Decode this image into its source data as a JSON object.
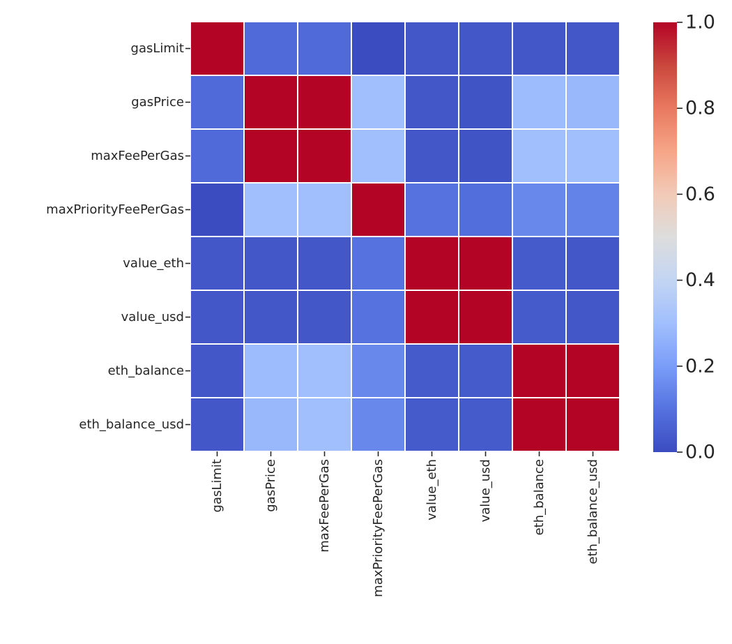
{
  "chart_data": {
    "type": "heatmap",
    "title": "",
    "xlabel": "",
    "ylabel": "",
    "row_labels": [
      "gasLimit",
      "gasPrice",
      "maxFeePerGas",
      "maxPriorityFeePerGas",
      "value_eth",
      "value_usd",
      "eth_balance",
      "eth_balance_usd"
    ],
    "col_labels": [
      "gasLimit",
      "gasPrice",
      "maxFeePerGas",
      "maxPriorityFeePerGas",
      "value_eth",
      "value_usd",
      "eth_balance",
      "eth_balance_usd"
    ],
    "values": [
      [
        1.0,
        0.08,
        0.08,
        0.0,
        0.03,
        0.03,
        0.03,
        0.03
      ],
      [
        0.08,
        1.0,
        1.0,
        0.3,
        0.03,
        0.02,
        0.29,
        0.28
      ],
      [
        0.08,
        1.0,
        1.0,
        0.3,
        0.03,
        0.02,
        0.3,
        0.3
      ],
      [
        0.0,
        0.3,
        0.3,
        1.0,
        0.1,
        0.09,
        0.15,
        0.14
      ],
      [
        0.03,
        0.03,
        0.03,
        0.1,
        1.0,
        1.0,
        0.04,
        0.03
      ],
      [
        0.03,
        0.03,
        0.03,
        0.1,
        1.0,
        1.0,
        0.04,
        0.03
      ],
      [
        0.03,
        0.29,
        0.3,
        0.15,
        0.04,
        0.04,
        1.0,
        1.0
      ],
      [
        0.03,
        0.28,
        0.3,
        0.15,
        0.04,
        0.04,
        1.0,
        1.0
      ]
    ],
    "colorbar": {
      "colormap": "coolwarm",
      "vmin": 0.0,
      "vmax": 1.0,
      "ticks": [
        0.0,
        0.2,
        0.4,
        0.6,
        0.8,
        1.0
      ],
      "tick_labels": [
        "0.0",
        "0.2",
        "0.4",
        "0.6",
        "0.8",
        "1.0"
      ]
    },
    "grid_line_color": "#ffffff"
  }
}
